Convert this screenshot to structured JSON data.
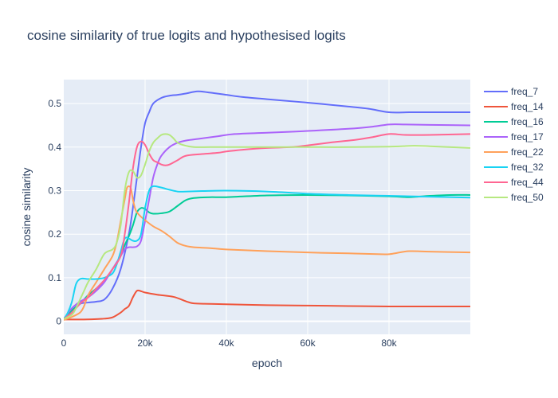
{
  "chart_data": {
    "type": "line",
    "title": "cosine similarity of true logits and hypothesised logits",
    "xlabel": "epoch",
    "ylabel": "cosine similarity",
    "xlim": [
      0,
      100000
    ],
    "ylim": [
      -0.03,
      0.555
    ],
    "xticks": [
      0,
      20000,
      40000,
      60000,
      80000
    ],
    "xtick_labels": [
      "0",
      "20k",
      "40k",
      "60k",
      "80k"
    ],
    "yticks": [
      0,
      0.1,
      0.2,
      0.3,
      0.4,
      0.5
    ],
    "ytick_labels": [
      "0",
      "0.1",
      "0.2",
      "0.3",
      "0.4",
      "0.5"
    ],
    "grid": true,
    "legend_position": "right",
    "series": [
      {
        "name": "freq_7",
        "color": "#636efa",
        "x": [
          0,
          2000,
          4000,
          6000,
          8000,
          10000,
          12000,
          14000,
          16000,
          17000,
          18000,
          19000,
          20000,
          21000,
          22000,
          24000,
          26000,
          28000,
          30000,
          33000,
          36000,
          40000,
          44000,
          50000,
          60000,
          70000,
          75000,
          80000,
          85000,
          90000,
          100000
        ],
        "y": [
          0.005,
          0.025,
          0.04,
          0.043,
          0.045,
          0.05,
          0.075,
          0.12,
          0.2,
          0.26,
          0.33,
          0.4,
          0.455,
          0.48,
          0.5,
          0.513,
          0.518,
          0.52,
          0.523,
          0.528,
          0.525,
          0.52,
          0.515,
          0.51,
          0.502,
          0.493,
          0.488,
          0.48,
          0.48,
          0.48,
          0.48
        ]
      },
      {
        "name": "freq_14",
        "color": "#ef553b",
        "x": [
          0,
          4000,
          8000,
          10000,
          12000,
          14000,
          15000,
          16000,
          17000,
          18000,
          19000,
          20000,
          23000,
          27000,
          30000,
          32000,
          36000,
          40000,
          50000,
          60000,
          70000,
          80000,
          90000,
          100000
        ],
        "y": [
          0.004,
          0.004,
          0.005,
          0.006,
          0.009,
          0.02,
          0.028,
          0.035,
          0.055,
          0.07,
          0.069,
          0.066,
          0.061,
          0.056,
          0.046,
          0.041,
          0.04,
          0.039,
          0.037,
          0.036,
          0.035,
          0.034,
          0.034,
          0.034
        ]
      },
      {
        "name": "freq_16",
        "color": "#00cc96",
        "x": [
          0,
          2000,
          4000,
          6000,
          8000,
          10000,
          12000,
          14000,
          15000,
          16000,
          17000,
          18000,
          19000,
          20000,
          21000,
          22000,
          24000,
          26000,
          28000,
          30000,
          32000,
          36000,
          40000,
          50000,
          60000,
          70000,
          80000,
          85000,
          90000,
          95000,
          100000
        ],
        "y": [
          0.005,
          0.025,
          0.04,
          0.06,
          0.075,
          0.092,
          0.12,
          0.15,
          0.175,
          0.195,
          0.22,
          0.25,
          0.26,
          0.258,
          0.25,
          0.247,
          0.248,
          0.252,
          0.265,
          0.278,
          0.283,
          0.285,
          0.285,
          0.289,
          0.29,
          0.289,
          0.287,
          0.285,
          0.288,
          0.29,
          0.29
        ]
      },
      {
        "name": "freq_17",
        "color": "#ab63fa",
        "x": [
          0,
          2000,
          4000,
          6000,
          8000,
          10000,
          12000,
          14000,
          15000,
          16000,
          17000,
          18000,
          19000,
          20000,
          21000,
          22000,
          23000,
          24000,
          26000,
          28000,
          30000,
          34000,
          38000,
          42000,
          50000,
          60000,
          70000,
          76000,
          80000,
          84000,
          90000,
          100000
        ],
        "y": [
          0.005,
          0.03,
          0.045,
          0.055,
          0.07,
          0.09,
          0.12,
          0.15,
          0.165,
          0.17,
          0.17,
          0.172,
          0.185,
          0.23,
          0.28,
          0.33,
          0.36,
          0.38,
          0.4,
          0.41,
          0.415,
          0.42,
          0.425,
          0.43,
          0.433,
          0.437,
          0.442,
          0.447,
          0.452,
          0.452,
          0.451,
          0.45
        ]
      },
      {
        "name": "freq_22",
        "color": "#ffa15a",
        "x": [
          0,
          2000,
          4000,
          5000,
          6000,
          8000,
          10000,
          12000,
          13000,
          14000,
          15000,
          15500,
          16000,
          16500,
          17000,
          17500,
          18000,
          19000,
          20000,
          22000,
          24000,
          26000,
          28000,
          30000,
          32000,
          36000,
          40000,
          50000,
          60000,
          70000,
          78000,
          80000,
          82000,
          85000,
          90000,
          100000
        ],
        "y": [
          0.003,
          0.01,
          0.02,
          0.035,
          0.06,
          0.09,
          0.12,
          0.15,
          0.18,
          0.23,
          0.28,
          0.305,
          0.31,
          0.305,
          0.28,
          0.26,
          0.25,
          0.24,
          0.232,
          0.218,
          0.208,
          0.195,
          0.18,
          0.173,
          0.17,
          0.168,
          0.165,
          0.161,
          0.158,
          0.156,
          0.154,
          0.154,
          0.157,
          0.161,
          0.16,
          0.158
        ]
      },
      {
        "name": "freq_32",
        "color": "#19d3f3",
        "x": [
          0,
          1000,
          2000,
          3000,
          4000,
          5000,
          6000,
          8000,
          10000,
          12000,
          13000,
          14000,
          15000,
          16000,
          17000,
          18000,
          19000,
          20000,
          21000,
          22000,
          24000,
          26000,
          28000,
          30000,
          34000,
          40000,
          50000,
          60000,
          70000,
          80000,
          90000,
          100000
        ],
        "y": [
          0.005,
          0.02,
          0.045,
          0.085,
          0.097,
          0.098,
          0.097,
          0.097,
          0.1,
          0.11,
          0.13,
          0.16,
          0.19,
          0.19,
          0.185,
          0.185,
          0.2,
          0.26,
          0.3,
          0.31,
          0.307,
          0.302,
          0.298,
          0.298,
          0.299,
          0.3,
          0.298,
          0.293,
          0.29,
          0.288,
          0.286,
          0.284
        ]
      },
      {
        "name": "freq_44",
        "color": "#ff6692",
        "x": [
          0,
          2000,
          4000,
          6000,
          8000,
          10000,
          12000,
          14000,
          15000,
          16000,
          17000,
          18000,
          19000,
          20000,
          21000,
          22000,
          23000,
          24000,
          25000,
          26000,
          28000,
          30000,
          34000,
          38000,
          40000,
          44000,
          50000,
          56000,
          60000,
          66000,
          72000,
          76000,
          80000,
          84000,
          90000,
          100000
        ],
        "y": [
          0.005,
          0.02,
          0.04,
          0.055,
          0.075,
          0.095,
          0.12,
          0.15,
          0.2,
          0.27,
          0.35,
          0.4,
          0.413,
          0.405,
          0.385,
          0.37,
          0.365,
          0.36,
          0.358,
          0.36,
          0.37,
          0.38,
          0.384,
          0.387,
          0.39,
          0.394,
          0.398,
          0.4,
          0.404,
          0.411,
          0.417,
          0.423,
          0.43,
          0.428,
          0.428,
          0.43
        ]
      },
      {
        "name": "freq_50",
        "color": "#b6e880",
        "x": [
          0,
          2000,
          3000,
          4000,
          5000,
          6000,
          8000,
          10000,
          12000,
          13000,
          14000,
          15000,
          16000,
          17000,
          18000,
          19000,
          20000,
          21000,
          22000,
          23000,
          24000,
          25000,
          26000,
          27000,
          28000,
          30000,
          32000,
          36000,
          40000,
          50000,
          60000,
          70000,
          80000,
          86000,
          90000,
          100000
        ],
        "y": [
          0.005,
          0.015,
          0.03,
          0.05,
          0.07,
          0.09,
          0.12,
          0.155,
          0.165,
          0.18,
          0.22,
          0.3,
          0.342,
          0.345,
          0.33,
          0.335,
          0.36,
          0.39,
          0.41,
          0.42,
          0.428,
          0.43,
          0.428,
          0.42,
          0.41,
          0.403,
          0.4,
          0.4,
          0.4,
          0.4,
          0.4,
          0.4,
          0.401,
          0.403,
          0.402,
          0.398
        ]
      }
    ]
  }
}
